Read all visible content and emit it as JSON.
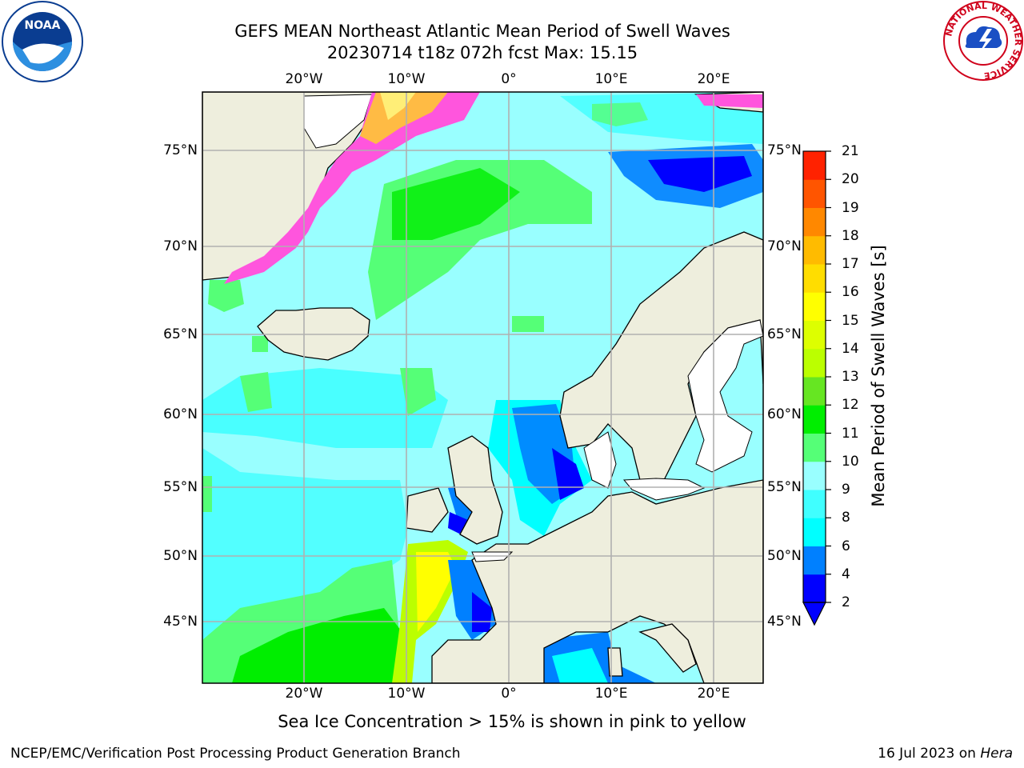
{
  "title": {
    "line1": "GEFS MEAN Northeast Atlantic Mean Period of Swell Waves",
    "line2": "20230714 t18z 072h fcst   Max: 15.15"
  },
  "map": {
    "projection": "cylindrical",
    "lon_range": [
      -30,
      25
    ],
    "lat_range": [
      41,
      78
    ],
    "lon_ticks": [
      {
        "value": -20,
        "label": "20°W"
      },
      {
        "value": -10,
        "label": "10°W"
      },
      {
        "value": 0,
        "label": "0°"
      },
      {
        "value": 10,
        "label": "10°E"
      },
      {
        "value": 20,
        "label": "20°E"
      }
    ],
    "lat_ticks": [
      {
        "value": 45,
        "label": "45°N"
      },
      {
        "value": 50,
        "label": "50°N"
      },
      {
        "value": 55,
        "label": "55°N"
      },
      {
        "value": 60,
        "label": "60°N"
      },
      {
        "value": 65,
        "label": "65°N"
      },
      {
        "value": 70,
        "label": "70°N"
      },
      {
        "value": 75,
        "label": "75°N"
      }
    ],
    "grid": true,
    "land_color": "#eeeedd",
    "ocean_base_color": "#99ffff"
  },
  "colorbar": {
    "label": "Mean Period of Swell Waves [s]",
    "levels": [
      2,
      4,
      6,
      8,
      9,
      10,
      11,
      12,
      13,
      14,
      15,
      16,
      17,
      18,
      19,
      20,
      21
    ],
    "colors": [
      "#0000ff",
      "#0080ff",
      "#00ffff",
      "#40ffff",
      "#99ffff",
      "#55ff77",
      "#00ee00",
      "#66e622",
      "#bbff00",
      "#ddff00",
      "#ffff00",
      "#ffdd00",
      "#ffbb00",
      "#ff8800",
      "#ff5500",
      "#ff2200"
    ],
    "extend": "min",
    "under_color": "#0000ff"
  },
  "footnote": "Sea Ice Concentration > 15% is shown in pink to yellow",
  "credit": "NCEP/EMC/Verification Post Processing Product Generation Branch",
  "date": "16 Jul 2023 on",
  "machine": "Hera",
  "logos": {
    "left": {
      "text": "NOAA",
      "color": "#0a3d91"
    },
    "right": {
      "text": "NATIONAL WEATHER SERVICE",
      "color": "#d0021b"
    }
  }
}
